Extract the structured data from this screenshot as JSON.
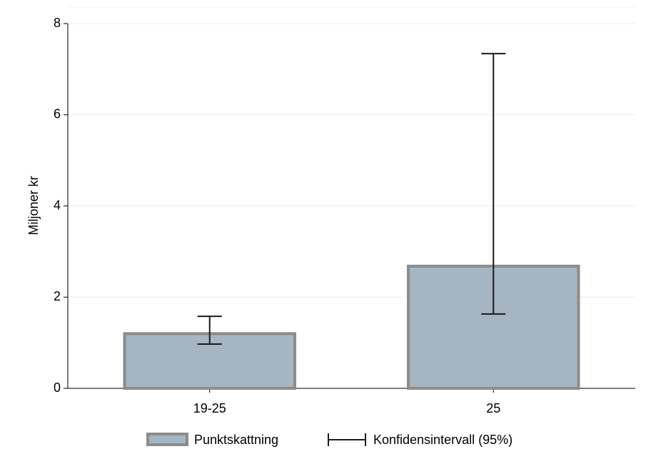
{
  "chart_data": {
    "type": "bar",
    "y_label": "Miljoner kr",
    "categories": [
      "19-25",
      "25"
    ],
    "series": [
      {
        "name": "Punktskattning",
        "color": "#a5b5c1",
        "edge_color": "#8c8c8c",
        "values": [
          1.2,
          2.68
        ],
        "ci_low": [
          0.97,
          1.63
        ],
        "ci_high": [
          1.58,
          7.34
        ]
      }
    ],
    "ci_label": "Konfidensintervall (95%)",
    "ylim": [
      0,
      8
    ],
    "yticks": [
      0,
      2,
      4,
      6,
      8
    ],
    "grid": true
  }
}
